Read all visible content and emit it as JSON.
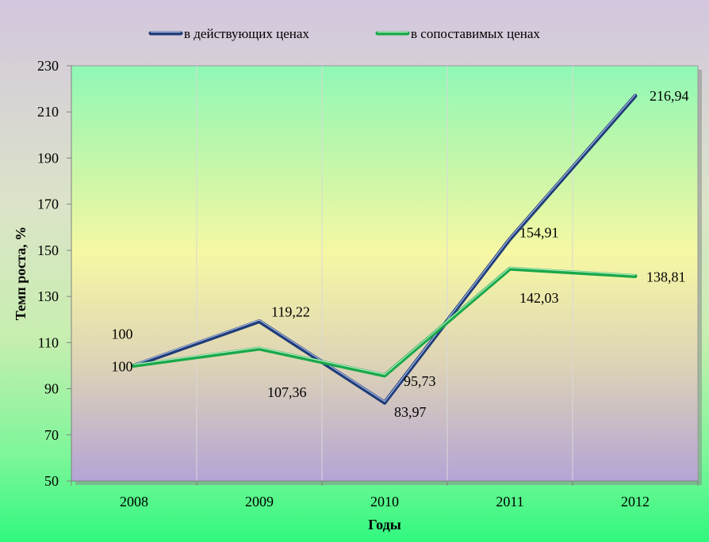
{
  "chart_data": {
    "type": "line",
    "xlabel": "Годы",
    "ylabel": "Темп роста, %",
    "categories": [
      "2008",
      "2009",
      "2010",
      "2011",
      "2012"
    ],
    "ylim": [
      50,
      230
    ],
    "yticks": [
      50,
      70,
      90,
      110,
      130,
      150,
      170,
      190,
      210,
      230
    ],
    "grid": "vertical",
    "legend_position": "top",
    "series": [
      {
        "name": "в действующих ценах",
        "values": [
          100,
          119.22,
          83.97,
          154.91,
          216.94
        ],
        "labels": [
          "100",
          "119,22",
          "83,97",
          "154,91",
          "216,94"
        ],
        "color": "#1f3c78"
      },
      {
        "name": "в сопоставимых ценах",
        "values": [
          100,
          107.36,
          95.73,
          142.03,
          138.81
        ],
        "labels": [
          "100",
          "107,36",
          "95,73",
          "142,03",
          "138,81"
        ],
        "color": "#1aa84a"
      }
    ]
  }
}
